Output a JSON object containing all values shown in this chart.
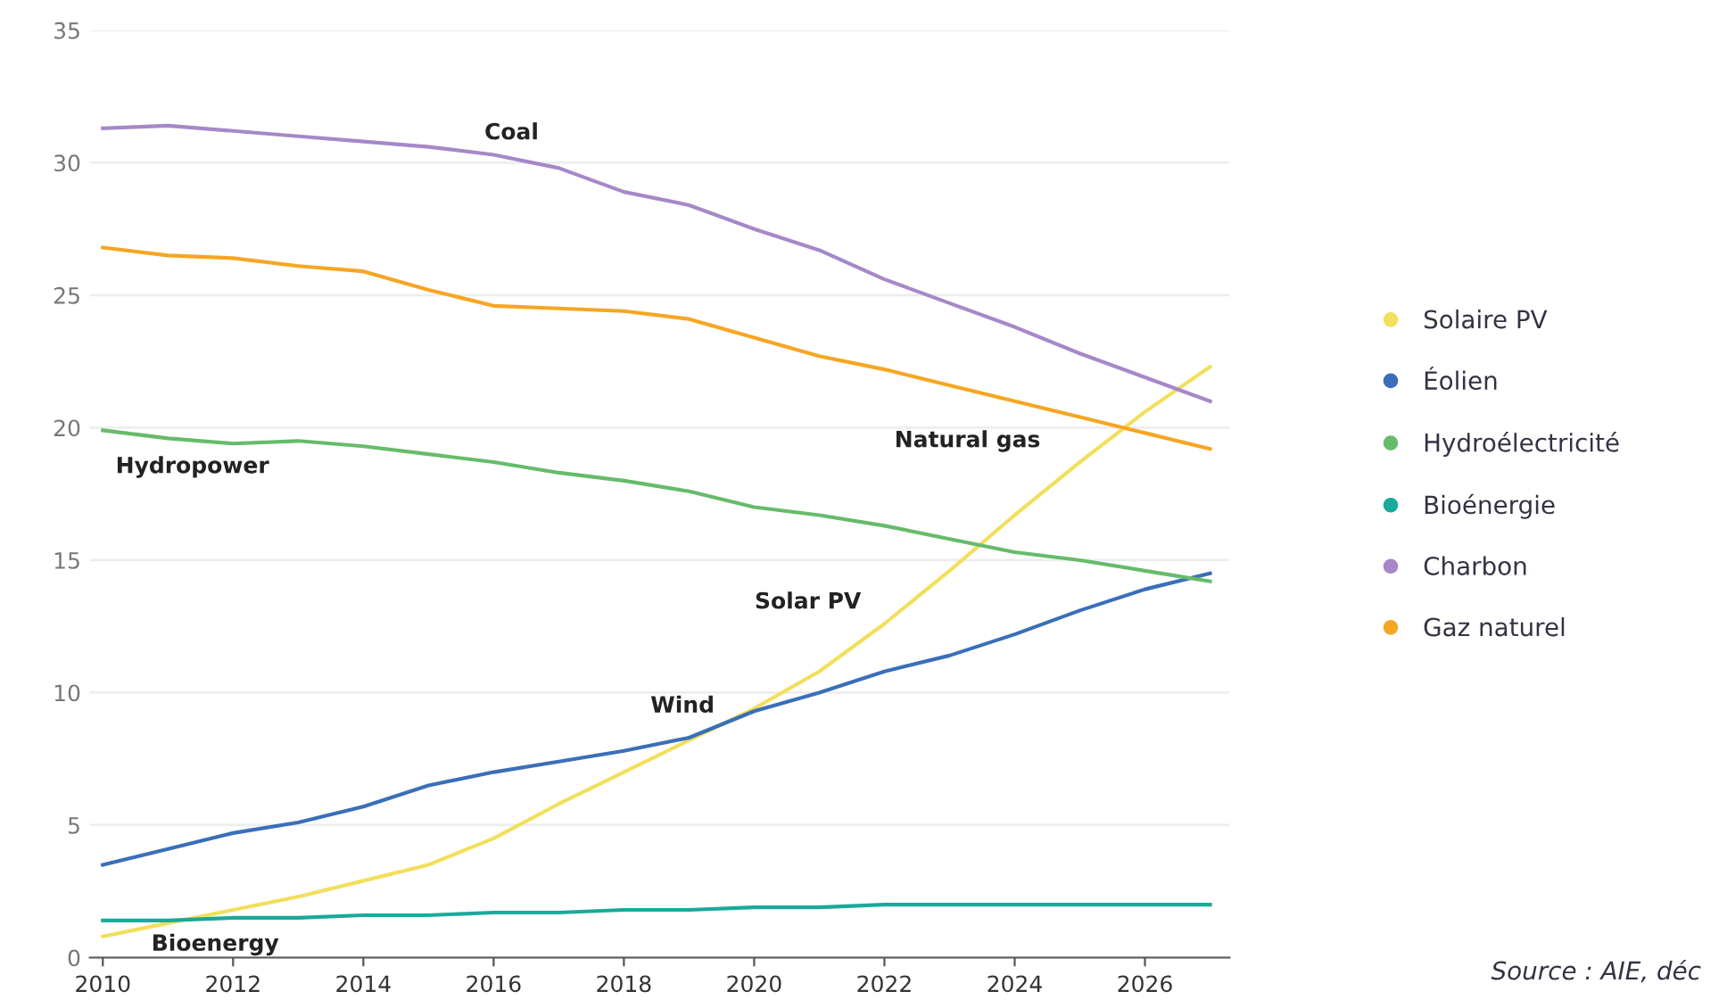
{
  "chart_data": {
    "type": "line",
    "x": [
      2010,
      2011,
      2012,
      2013,
      2014,
      2015,
      2016,
      2017,
      2018,
      2019,
      2020,
      2021,
      2022,
      2023,
      2024,
      2025,
      2026,
      2027
    ],
    "series": [
      {
        "name": "Solaire PV",
        "color": "#f2df5b",
        "values": [
          0.8,
          1.3,
          1.8,
          2.3,
          2.9,
          3.5,
          4.5,
          5.8,
          7.0,
          8.2,
          9.4,
          10.8,
          12.6,
          14.6,
          16.7,
          18.7,
          20.6,
          22.3
        ]
      },
      {
        "name": "Éolien",
        "color": "#3a6fb8",
        "values": [
          3.5,
          4.1,
          4.7,
          5.1,
          5.7,
          6.5,
          7.0,
          7.4,
          7.8,
          8.3,
          9.3,
          10.0,
          10.8,
          11.4,
          12.2,
          13.1,
          13.9,
          14.5
        ]
      },
      {
        "name": "Hydroélectricité",
        "color": "#66bb6a",
        "values": [
          19.9,
          19.6,
          19.4,
          19.5,
          19.3,
          19.0,
          18.7,
          18.3,
          18.0,
          17.6,
          17.0,
          16.7,
          16.3,
          15.8,
          15.3,
          15.0,
          14.6,
          14.2
        ]
      },
      {
        "name": "Bioénergie",
        "color": "#1aa99a",
        "values": [
          1.4,
          1.4,
          1.5,
          1.5,
          1.6,
          1.6,
          1.7,
          1.7,
          1.8,
          1.8,
          1.9,
          1.9,
          2.0,
          2.0,
          2.0,
          2.0,
          2.0,
          2.0
        ]
      },
      {
        "name": "Charbon",
        "color": "#a688c8",
        "values": [
          31.3,
          31.4,
          31.2,
          31.0,
          30.8,
          30.6,
          30.3,
          29.8,
          28.9,
          28.4,
          27.5,
          26.7,
          25.6,
          24.7,
          23.8,
          22.8,
          21.9,
          21.0
        ]
      },
      {
        "name": "Gaz naturel",
        "color": "#f5a623",
        "values": [
          26.8,
          26.5,
          26.4,
          26.1,
          25.9,
          25.2,
          24.6,
          24.5,
          24.4,
          24.1,
          23.4,
          22.7,
          22.2,
          21.6,
          21.0,
          20.4,
          19.8,
          19.2
        ]
      }
    ],
    "xlim": [
      2009.8,
      2027.3
    ],
    "xticks": [
      2010,
      2012,
      2014,
      2016,
      2018,
      2020,
      2022,
      2024,
      2026
    ],
    "ylim": [
      0,
      35
    ],
    "yticks": [
      0,
      5,
      10,
      15,
      20,
      25,
      30,
      35
    ],
    "grid": "y",
    "legend": "right",
    "line_style": "solid",
    "annotations": [
      "Coal",
      "Natural gas",
      "Hydropower",
      "Solar PV",
      "Wind",
      "Bioenergy",
      "Source : AIE, déc"
    ]
  }
}
